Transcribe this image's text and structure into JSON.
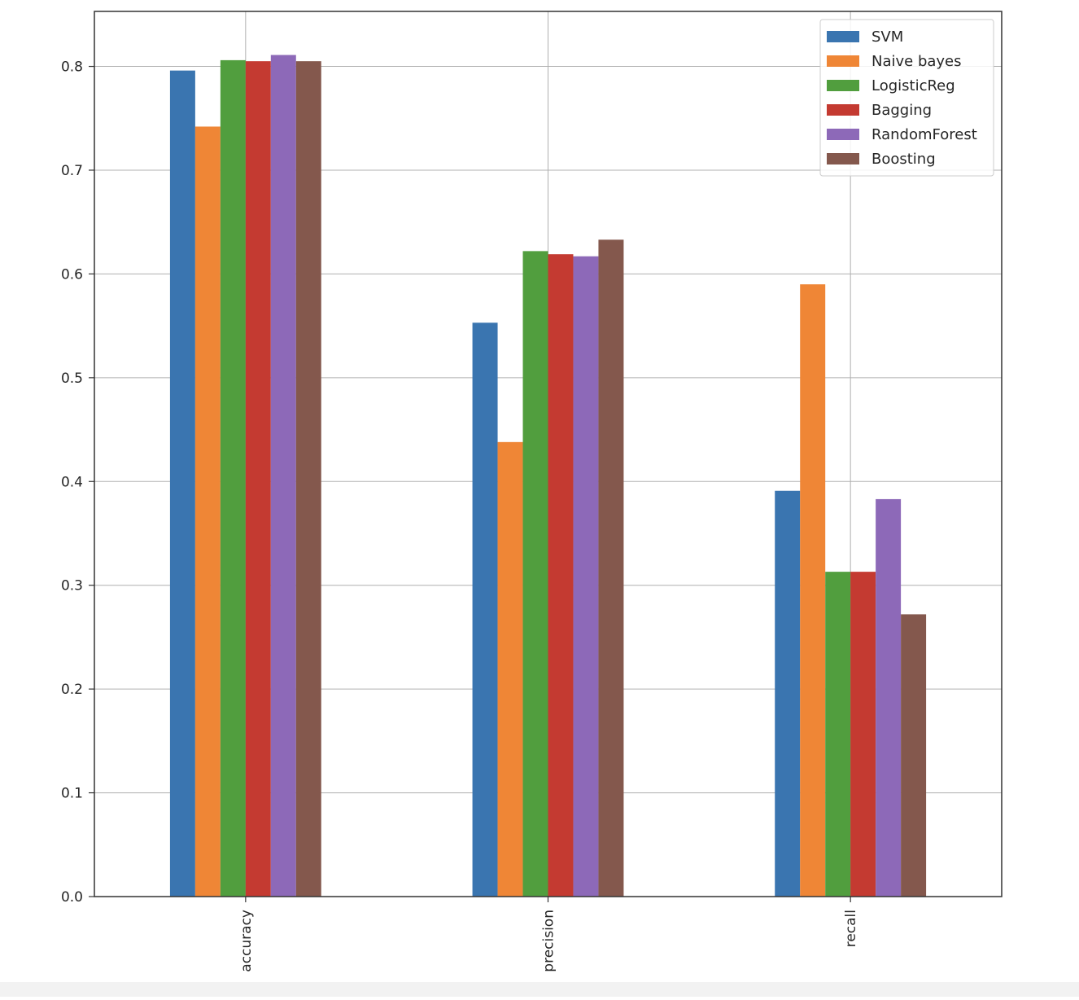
{
  "chart_data": {
    "type": "bar",
    "title": "",
    "xlabel": "",
    "ylabel": "",
    "categories": [
      "accuracy",
      "precision",
      "recall"
    ],
    "series": [
      {
        "name": "SVM",
        "color": "#3a75b0",
        "values": [
          0.796,
          0.553,
          0.391
        ]
      },
      {
        "name": "Naive bayes",
        "color": "#ef8636",
        "values": [
          0.742,
          0.438,
          0.59
        ]
      },
      {
        "name": "LogisticReg",
        "color": "#519e3e",
        "values": [
          0.806,
          0.622,
          0.313
        ]
      },
      {
        "name": "Bagging",
        "color": "#c43a31",
        "values": [
          0.805,
          0.619,
          0.313
        ]
      },
      {
        "name": "RandomForest",
        "color": "#8d69b8",
        "values": [
          0.811,
          0.617,
          0.383
        ]
      },
      {
        "name": "Boosting",
        "color": "#84584d",
        "values": [
          0.805,
          0.633,
          0.272
        ]
      }
    ],
    "ylim": [
      0,
      0.853
    ],
    "yticks": [
      "0.0",
      "0.1",
      "0.2",
      "0.3",
      "0.4",
      "0.5",
      "0.6",
      "0.7",
      "0.8"
    ],
    "grid": true,
    "legend_position": "top-right"
  }
}
